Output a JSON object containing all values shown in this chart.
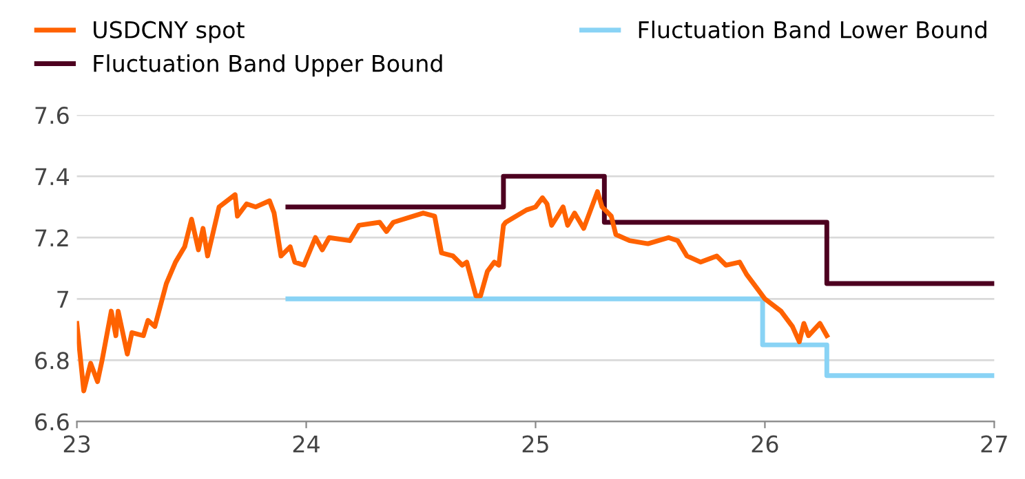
{
  "chart_data": {
    "type": "line",
    "xlim": [
      23,
      27
    ],
    "xticks": [
      23,
      24,
      25,
      26,
      27
    ],
    "ylim": [
      6.6,
      7.6
    ],
    "yticks": [
      6.6,
      6.8,
      {
        "value": 7,
        "label": "7"
      },
      7.2,
      7.4,
      7.6
    ],
    "grid": "y",
    "legend": "top",
    "line_style": "solid",
    "series": [
      {
        "name": "USDCNY spot",
        "color": "#ff6200",
        "x": [
          23.0,
          23.03,
          23.06,
          23.09,
          23.11,
          23.15,
          23.17,
          23.18,
          23.22,
          23.24,
          23.29,
          23.31,
          23.34,
          23.39,
          23.43,
          23.47,
          23.5,
          23.53,
          23.55,
          23.57,
          23.62,
          23.69,
          23.7,
          23.74,
          23.78,
          23.84,
          23.86,
          23.89,
          23.93,
          23.95,
          23.99,
          24.04,
          24.07,
          24.1,
          24.19,
          24.23,
          24.32,
          24.35,
          24.38,
          24.51,
          24.56,
          24.59,
          24.64,
          24.68,
          24.7,
          24.74,
          24.76,
          24.79,
          24.82,
          24.84,
          24.86,
          24.87,
          24.96,
          25.0,
          25.03,
          25.05,
          25.07,
          25.12,
          25.14,
          25.17,
          25.21,
          25.27,
          25.29,
          25.33,
          25.35,
          25.41,
          25.49,
          25.58,
          25.62,
          25.66,
          25.72,
          25.79,
          25.83,
          25.89,
          25.92,
          25.97,
          26.0,
          26.07,
          26.12,
          26.15,
          26.17,
          26.19,
          26.24,
          26.27
        ],
        "values": [
          6.92,
          6.7,
          6.79,
          6.73,
          6.8,
          6.96,
          6.88,
          6.96,
          6.82,
          6.89,
          6.88,
          6.93,
          6.91,
          7.05,
          7.12,
          7.17,
          7.26,
          7.16,
          7.23,
          7.14,
          7.3,
          7.34,
          7.27,
          7.31,
          7.3,
          7.32,
          7.28,
          7.14,
          7.17,
          7.12,
          7.11,
          7.2,
          7.16,
          7.2,
          7.19,
          7.24,
          7.25,
          7.22,
          7.25,
          7.28,
          7.27,
          7.15,
          7.14,
          7.11,
          7.12,
          7.01,
          7.01,
          7.09,
          7.12,
          7.11,
          7.24,
          7.25,
          7.29,
          7.3,
          7.33,
          7.31,
          7.24,
          7.3,
          7.24,
          7.28,
          7.23,
          7.35,
          7.3,
          7.27,
          7.21,
          7.19,
          7.18,
          7.2,
          7.19,
          7.14,
          7.12,
          7.14,
          7.11,
          7.12,
          7.08,
          7.03,
          7.0,
          6.96,
          6.91,
          6.86,
          6.92,
          6.88,
          6.92,
          6.88
        ]
      },
      {
        "name": "Fluctuation Band Lower Bound",
        "type": "step",
        "color": "#89d3f5",
        "x": [
          23.92,
          25.99,
          26.27,
          27
        ],
        "values": [
          7.0,
          6.85,
          6.75,
          6.75
        ]
      },
      {
        "name": "Fluctuation Band Upper Bound",
        "type": "step",
        "color": "#4d0020",
        "x": [
          23.92,
          24.86,
          25.3,
          26.27,
          27
        ],
        "values": [
          7.3,
          7.4,
          7.25,
          7.05,
          7.05
        ]
      }
    ]
  }
}
